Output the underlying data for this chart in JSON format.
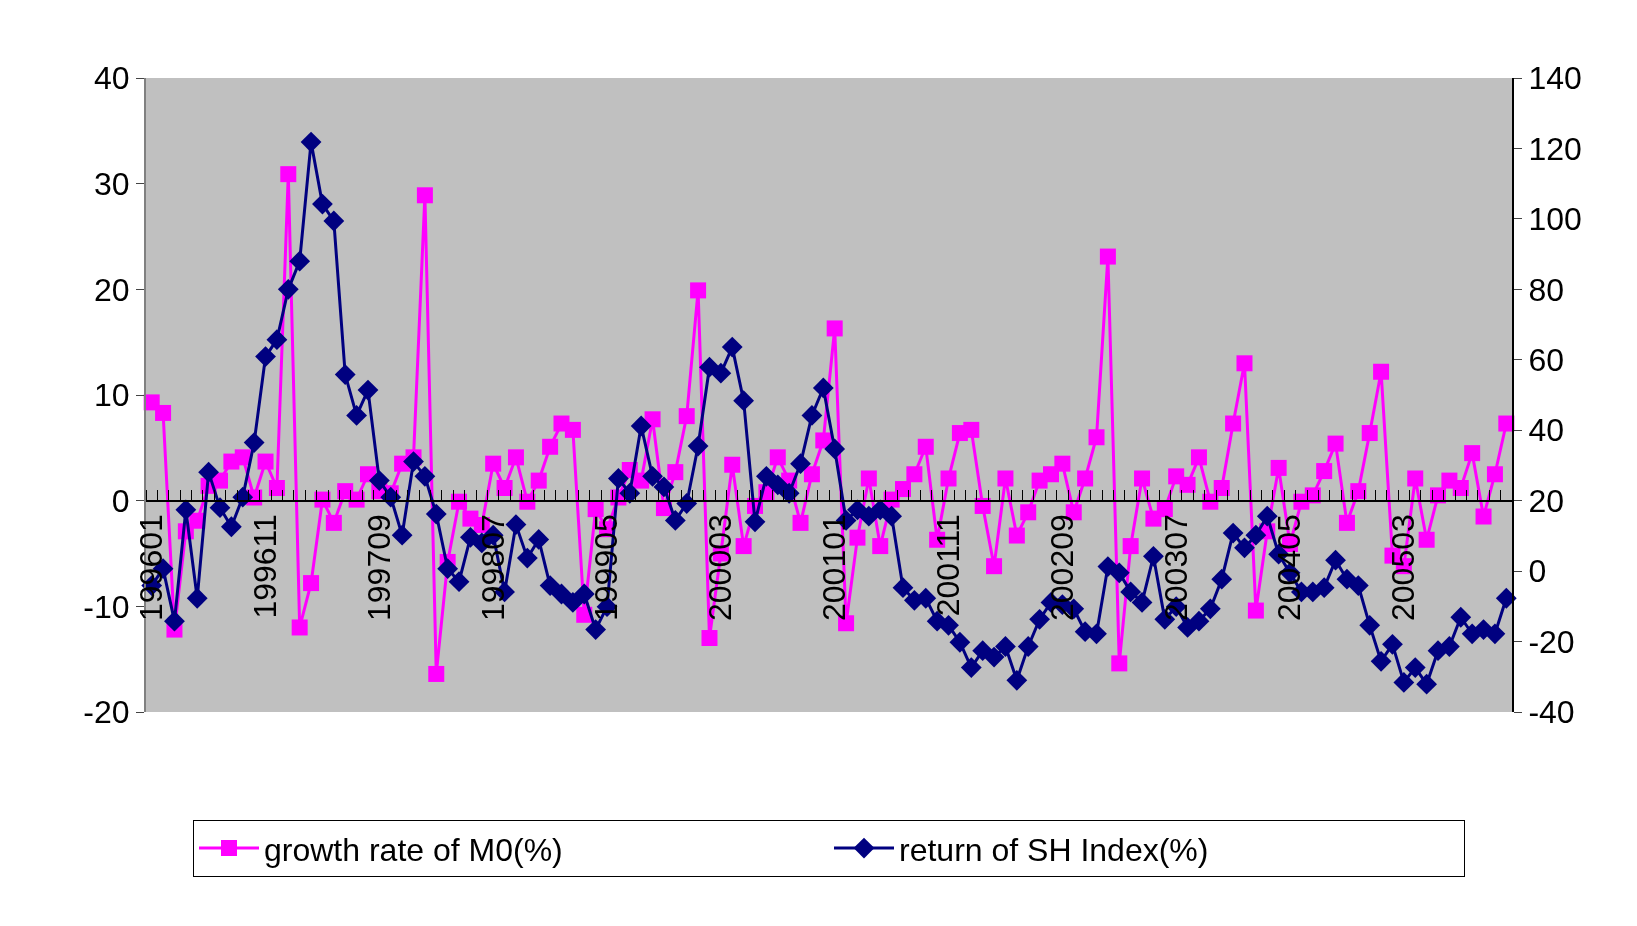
{
  "chart_data": {
    "type": "line",
    "categories": [
      "199601",
      null,
      null,
      null,
      null,
      null,
      null,
      null,
      null,
      null,
      "199611",
      null,
      null,
      null,
      null,
      null,
      null,
      null,
      null,
      null,
      "199709",
      null,
      null,
      null,
      null,
      null,
      null,
      null,
      null,
      null,
      "199807",
      null,
      null,
      null,
      null,
      null,
      null,
      null,
      null,
      null,
      "199905",
      null,
      null,
      null,
      null,
      null,
      null,
      null,
      null,
      null,
      "200003",
      null,
      null,
      null,
      null,
      null,
      null,
      null,
      null,
      null,
      "200101",
      null,
      null,
      null,
      null,
      null,
      null,
      null,
      null,
      null,
      "200111",
      null,
      null,
      null,
      null,
      null,
      null,
      null,
      null,
      null,
      "200209",
      null,
      null,
      null,
      null,
      null,
      null,
      null,
      null,
      null,
      "200307",
      null,
      null,
      null,
      null,
      null,
      null,
      null,
      null,
      null,
      "200405",
      null,
      null,
      null,
      null,
      null,
      null,
      null,
      null,
      null,
      "200503",
      null,
      null,
      null,
      null,
      null,
      null,
      null,
      null,
      null
    ],
    "series": [
      {
        "name": "growth rate of M0(%)",
        "color": "#ff00ff",
        "marker": "square",
        "values": [
          9.3,
          8.3,
          -12.2,
          -2.9,
          -1.9,
          1.4,
          1.9,
          3.7,
          4.1,
          0.3,
          3.7,
          1.2,
          30.9,
          -12.0,
          -7.8,
          0.1,
          -2.1,
          0.9,
          0.1,
          2.5,
          0.9,
          0.7,
          3.5,
          4.1,
          28.9,
          -16.4,
          -5.8,
          -0.1,
          -1.7,
          -2.3,
          3.5,
          1.2,
          4.1,
          -0.1,
          1.9,
          5.1,
          7.3,
          6.7,
          -10.8,
          -0.8,
          -2.7,
          0.3,
          2.9,
          1.9,
          7.7,
          -0.7,
          2.7,
          8.0,
          19.9,
          -13.0,
          -5.0,
          3.4,
          -4.3,
          -0.5,
          0.8,
          4.1,
          1.9,
          -2.1,
          2.5,
          5.7,
          16.3,
          -11.6,
          -3.5,
          2.1,
          -4.3,
          0.1,
          1.1,
          2.5,
          5.1,
          -3.7,
          2.1,
          6.4,
          6.7,
          -0.5,
          -6.2,
          2.1,
          -3.3,
          -1.1,
          1.9,
          2.5,
          3.5,
          -1.1,
          2.1,
          6.0,
          23.1,
          -15.4,
          -4.3,
          2.1,
          -1.7,
          -0.8,
          2.3,
          1.5,
          4.1,
          -0.1,
          1.2,
          7.3,
          13.0,
          -10.4,
          -2.9,
          3.1,
          -4.1,
          -0.1,
          0.5,
          2.8,
          5.4,
          -2.1,
          0.9,
          6.4,
          12.2,
          -5.2,
          -6.2,
          2.1,
          -3.7,
          0.5,
          1.9,
          1.2,
          4.5,
          -1.5,
          2.5,
          7.3
        ]
      },
      {
        "name": "return of SH Index(%)",
        "color": "#000080",
        "marker": "diamond",
        "axis": "y2",
        "values": [
          -4.1,
          0.7,
          -14.2,
          17.4,
          -7.7,
          28.1,
          18.0,
          12.6,
          21.0,
          36.5,
          60.9,
          65.7,
          80.0,
          88.0,
          121.8,
          104.2,
          99.4,
          55.8,
          44.2,
          51.4,
          25.7,
          21.0,
          10.2,
          31.1,
          26.9,
          16.2,
          0.7,
          -3.0,
          9.6,
          8.0,
          10.2,
          -5.9,
          13.2,
          3.7,
          9.0,
          -4.1,
          -6.5,
          -8.9,
          -6.5,
          -16.6,
          -10.1,
          26.3,
          22.1,
          41.2,
          26.9,
          23.9,
          14.4,
          19.2,
          35.5,
          57.9,
          56.2,
          63.6,
          48.4,
          14.0,
          26.9,
          24.5,
          22.1,
          30.5,
          44.2,
          52.0,
          34.7,
          14.4,
          17.4,
          15.6,
          17.4,
          15.6,
          -4.7,
          -8.3,
          -7.7,
          -14.2,
          -15.4,
          -20.2,
          -27.4,
          -22.6,
          -24.4,
          -21.4,
          -31.0,
          -21.4,
          -13.7,
          -8.9,
          -9.5,
          -10.7,
          -17.2,
          -17.8,
          1.3,
          -0.5,
          -5.9,
          -8.9,
          4.2,
          -13.7,
          -10.1,
          -16.0,
          -14.2,
          -10.7,
          -2.3,
          10.8,
          6.6,
          10.2,
          15.6,
          4.8,
          -0.5,
          -5.9,
          -5.9,
          -4.7,
          3.1,
          -2.3,
          -4.1,
          -15.4,
          -25.6,
          -20.8,
          -31.6,
          -27.4,
          -32.1,
          -22.6,
          -21.4,
          -13.1,
          -17.8,
          -16.6,
          -17.8,
          -7.7
        ]
      }
    ],
    "ylim": [
      -20,
      40
    ],
    "yticks": [
      -20,
      -10,
      0,
      10,
      20,
      30,
      40
    ],
    "y2lim": [
      -40,
      140
    ],
    "y2ticks": [
      -40,
      -20,
      0,
      20,
      40,
      60,
      80,
      100,
      120,
      140
    ],
    "legend": "bottom"
  }
}
